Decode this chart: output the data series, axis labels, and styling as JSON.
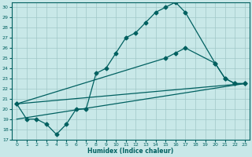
{
  "xlabel": "Humidex (Indice chaleur)",
  "xlim": [
    -0.5,
    23.5
  ],
  "ylim": [
    17,
    30.5
  ],
  "yticks": [
    17,
    18,
    19,
    20,
    21,
    22,
    23,
    24,
    25,
    26,
    27,
    28,
    29,
    30
  ],
  "xticks": [
    0,
    1,
    2,
    3,
    4,
    5,
    6,
    7,
    8,
    9,
    10,
    11,
    12,
    13,
    14,
    15,
    16,
    17,
    18,
    19,
    20,
    21,
    22,
    23
  ],
  "background_color": "#c8e8e8",
  "line_color": "#006060",
  "grid_color": "#a0c8c8",
  "line1_x": [
    0,
    1,
    2,
    3,
    4,
    5,
    6,
    7,
    8,
    9,
    10,
    11,
    12,
    13,
    14,
    15,
    16,
    17,
    20,
    21,
    22,
    23
  ],
  "line1_y": [
    20.5,
    19,
    19,
    18.5,
    17.5,
    18.5,
    20.0,
    20.0,
    23.5,
    24.0,
    25.5,
    27.0,
    27.5,
    28.5,
    29.5,
    30.0,
    30.5,
    29.5,
    24.5,
    23.0,
    22.5,
    22.5
  ],
  "line2_x": [
    0,
    23
  ],
  "line2_y": [
    20.5,
    22.5
  ],
  "line3_x": [
    0,
    23
  ],
  "line3_y": [
    19.0,
    22.5
  ],
  "line4_x": [
    0,
    15,
    16,
    17,
    20,
    21,
    22,
    23
  ],
  "line4_y": [
    20.5,
    25.0,
    25.5,
    26.0,
    24.5,
    23.0,
    22.5,
    22.5
  ]
}
